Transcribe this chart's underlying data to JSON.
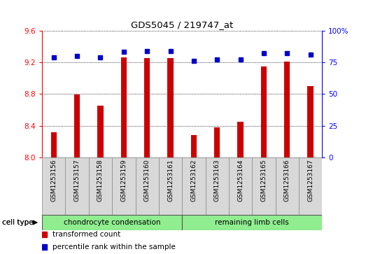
{
  "title": "GDS5045 / 219747_at",
  "samples": [
    "GSM1253156",
    "GSM1253157",
    "GSM1253158",
    "GSM1253159",
    "GSM1253160",
    "GSM1253161",
    "GSM1253162",
    "GSM1253163",
    "GSM1253164",
    "GSM1253165",
    "GSM1253166",
    "GSM1253167"
  ],
  "transformed_count": [
    8.32,
    8.79,
    8.65,
    9.26,
    9.25,
    9.25,
    8.28,
    8.38,
    8.45,
    9.15,
    9.21,
    8.9
  ],
  "percentile_rank": [
    79,
    80,
    79,
    83,
    84,
    84,
    76,
    77,
    77,
    82,
    82,
    81
  ],
  "ylim_left": [
    8.0,
    9.6
  ],
  "ylim_right": [
    0,
    100
  ],
  "yticks_left": [
    8.0,
    8.4,
    8.8,
    9.2,
    9.6
  ],
  "yticks_right": [
    0,
    25,
    50,
    75,
    100
  ],
  "bar_color": "#cc0000",
  "dot_color": "#0000cc",
  "cell_types": [
    {
      "label": "chondrocyte condensation",
      "start": 0,
      "end": 6
    },
    {
      "label": "remaining limb cells",
      "start": 6,
      "end": 12
    }
  ],
  "cell_type_label": "cell type",
  "legend_bar_label": "transformed count",
  "legend_dot_label": "percentile rank within the sample",
  "fig_width": 5.23,
  "fig_height": 3.63,
  "dpi": 100
}
